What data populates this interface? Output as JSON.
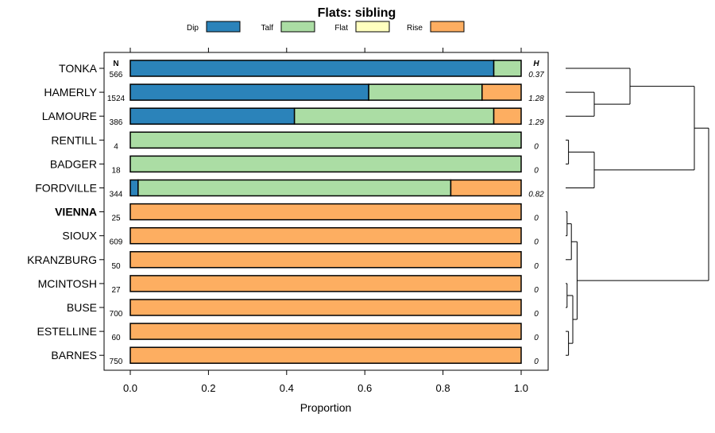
{
  "chart_data": {
    "type": "bar",
    "subtype": "horizontal-stacked-proportion",
    "title": "Flats: sibling",
    "xlabel": "Proportion",
    "ylabel": "",
    "xlim": [
      0,
      1
    ],
    "xticks": [
      "0.0",
      "0.2",
      "0.4",
      "0.6",
      "0.8",
      "1.0"
    ],
    "legend": [
      {
        "name": "Dip",
        "color": "#2b83ba"
      },
      {
        "name": "Talf",
        "color": "#abdda4"
      },
      {
        "name": "Flat",
        "color": "#ffffbf"
      },
      {
        "name": "Rise",
        "color": "#fdae61"
      }
    ],
    "n_header": "N",
    "h_header": "H",
    "rows": [
      {
        "name": "TONKA",
        "n": "566",
        "h": "0.37",
        "bold": false,
        "values": [
          0.93,
          0.07,
          0,
          0
        ]
      },
      {
        "name": "HAMERLY",
        "n": "1524",
        "h": "1.28",
        "bold": false,
        "values": [
          0.61,
          0.29,
          0,
          0.1
        ]
      },
      {
        "name": "LAMOURE",
        "n": "386",
        "h": "1.29",
        "bold": false,
        "values": [
          0.42,
          0.51,
          0,
          0.07
        ]
      },
      {
        "name": "RENTILL",
        "n": "4",
        "h": "0",
        "bold": false,
        "values": [
          0,
          1,
          0,
          0
        ]
      },
      {
        "name": "BADGER",
        "n": "18",
        "h": "0",
        "bold": false,
        "values": [
          0,
          1,
          0,
          0
        ]
      },
      {
        "name": "FORDVILLE",
        "n": "344",
        "h": "0.82",
        "bold": false,
        "values": [
          0.02,
          0.8,
          0,
          0.18
        ]
      },
      {
        "name": "VIENNA",
        "n": "25",
        "h": "0",
        "bold": true,
        "values": [
          0,
          0,
          0,
          1
        ]
      },
      {
        "name": "SIOUX",
        "n": "609",
        "h": "0",
        "bold": false,
        "values": [
          0,
          0,
          0,
          1
        ]
      },
      {
        "name": "KRANZBURG",
        "n": "50",
        "h": "0",
        "bold": false,
        "values": [
          0,
          0,
          0,
          1
        ]
      },
      {
        "name": "MCINTOSH",
        "n": "27",
        "h": "0",
        "bold": false,
        "values": [
          0,
          0,
          0,
          1
        ]
      },
      {
        "name": "BUSE",
        "n": "700",
        "h": "0",
        "bold": false,
        "values": [
          0,
          0,
          0,
          1
        ]
      },
      {
        "name": "ESTELLINE",
        "n": "60",
        "h": "0",
        "bold": false,
        "values": [
          0,
          0,
          0,
          1
        ]
      },
      {
        "name": "BARNES",
        "n": "750",
        "h": "0",
        "bold": false,
        "values": [
          0,
          0,
          0,
          1
        ]
      }
    ],
    "dendrogram": {
      "description": "hierarchical clustering of rows (leaf order top to bottom)",
      "leaves": [
        "TONKA",
        "HAMERLY",
        "LAMOURE",
        "RENTILL",
        "BADGER",
        "FORDVILLE",
        "VIENNA",
        "SIOUX",
        "KRANZBURG",
        "MCINTOSH",
        "BUSE",
        "ESTELLINE",
        "BARNES"
      ],
      "merges": [
        {
          "a": "HAMERLY",
          "b": "LAMOURE",
          "height": 0.2
        },
        {
          "a": "TONKA",
          "b": "HAMERLY+LAMOURE",
          "height": 0.45
        },
        {
          "a": "RENTILL",
          "b": "BADGER",
          "height": 0.02
        },
        {
          "a": "RENTILL+BADGER",
          "b": "FORDVILLE",
          "height": 0.2
        },
        {
          "a": "TONKA+HAMERLY+LAMOURE",
          "b": "RENTILL+BADGER+FORDVILLE",
          "height": 0.9
        },
        {
          "a": "VIENNA",
          "b": "SIOUX",
          "height": 0.01
        },
        {
          "a": "VIENNA+SIOUX",
          "b": "KRANZBURG",
          "height": 0.04
        },
        {
          "a": "MCINTOSH",
          "b": "BUSE",
          "height": 0.01
        },
        {
          "a": "ESTELLINE",
          "b": "BARNES",
          "height": 0.02
        },
        {
          "a": "MCINTOSH+BUSE",
          "b": "ESTELLINE+BARNES",
          "height": 0.05
        },
        {
          "a": "VIENNA+SIOUX+KRANZBURG",
          "b": "MCINTOSH+BUSE+ESTELLINE+BARNES",
          "height": 0.08
        },
        {
          "a": "TOP6",
          "b": "BOTTOM7",
          "height": 1.0
        }
      ]
    }
  }
}
